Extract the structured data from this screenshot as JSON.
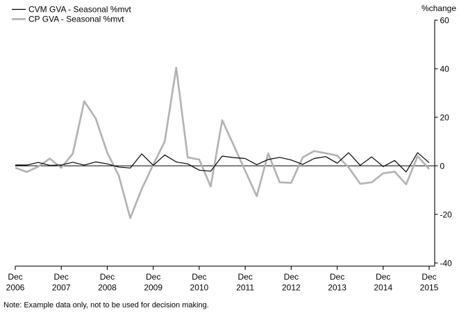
{
  "legend": [
    {
      "label": "CVM GVA - Seasonal %mvt",
      "color": "#000000"
    },
    {
      "label": "CP GVA - Seasonal %mvt",
      "color": "#b3b3b3"
    }
  ],
  "note": "Note: Example data only, not to be used for decision making.",
  "chart_data": {
    "type": "line",
    "title": "",
    "ylabel": "%change",
    "xlabel": "",
    "ylim": [
      -40,
      60
    ],
    "yticks": [
      60,
      40,
      20,
      0,
      -20,
      -40
    ],
    "grid": false,
    "zero_line": true,
    "legend_position": "top-left",
    "x_ticks": [
      {
        "top": "Dec",
        "bottom": "2006"
      },
      {
        "top": "Dec",
        "bottom": "2007"
      },
      {
        "top": "Dec",
        "bottom": "2008"
      },
      {
        "top": "Dec",
        "bottom": "2009"
      },
      {
        "top": "Dec",
        "bottom": "2010"
      },
      {
        "top": "Dec",
        "bottom": "2011"
      },
      {
        "top": "Dec",
        "bottom": "2012"
      },
      {
        "top": "Dec",
        "bottom": "2013"
      },
      {
        "top": "Dec",
        "bottom": "2014"
      },
      {
        "top": "Dec",
        "bottom": "2015"
      }
    ],
    "categories": [
      "Dec 2006",
      "Mar 2007",
      "Jun 2007",
      "Sep 2007",
      "Dec 2007",
      "Mar 2008",
      "Jun 2008",
      "Sep 2008",
      "Dec 2008",
      "Mar 2009",
      "Jun 2009",
      "Sep 2009",
      "Dec 2009",
      "Mar 2010",
      "Jun 2010",
      "Sep 2010",
      "Dec 2010",
      "Mar 2011",
      "Jun 2011",
      "Sep 2011",
      "Dec 2011",
      "Mar 2012",
      "Jun 2012",
      "Sep 2012",
      "Dec 2012",
      "Mar 2013",
      "Jun 2013",
      "Sep 2013",
      "Dec 2013",
      "Mar 2014",
      "Jun 2014",
      "Sep 2014",
      "Dec 2014",
      "Mar 2015",
      "Jun 2015",
      "Sep 2015",
      "Dec 2015"
    ],
    "series": [
      {
        "name": "CP GVA - Seasonal %mvt",
        "color": "#b3b3b3",
        "stroke_width": 2.7,
        "values": [
          -0.8,
          -2.5,
          -0.3,
          3.0,
          -0.8,
          5.0,
          26.6,
          19.5,
          5.5,
          -4.0,
          -21.5,
          -9.5,
          0.5,
          10.0,
          40.4,
          3.5,
          2.6,
          -8.5,
          18.8,
          8.4,
          -2.0,
          -12.5,
          5.1,
          -6.8,
          -7.0,
          3.5,
          6.1,
          5.2,
          4.2,
          -0.7,
          -7.4,
          -6.8,
          -3.1,
          -2.4,
          -7.6,
          4.0,
          -1.3
        ]
      },
      {
        "name": "CVM GVA - Seasonal %mvt",
        "color": "#000000",
        "stroke_width": 1.2,
        "values": [
          0.3,
          0.3,
          1.4,
          0.2,
          0.3,
          1.5,
          0.3,
          1.6,
          0.8,
          -0.5,
          -0.9,
          4.9,
          0.2,
          4.5,
          1.6,
          0.8,
          -1.8,
          -2.2,
          4.0,
          3.4,
          3.0,
          0.5,
          2.6,
          3.5,
          2.4,
          0.6,
          3.0,
          3.8,
          1.1,
          5.4,
          0.2,
          3.7,
          -0.3,
          2.2,
          -2.5,
          5.4,
          1.3
        ]
      }
    ]
  }
}
